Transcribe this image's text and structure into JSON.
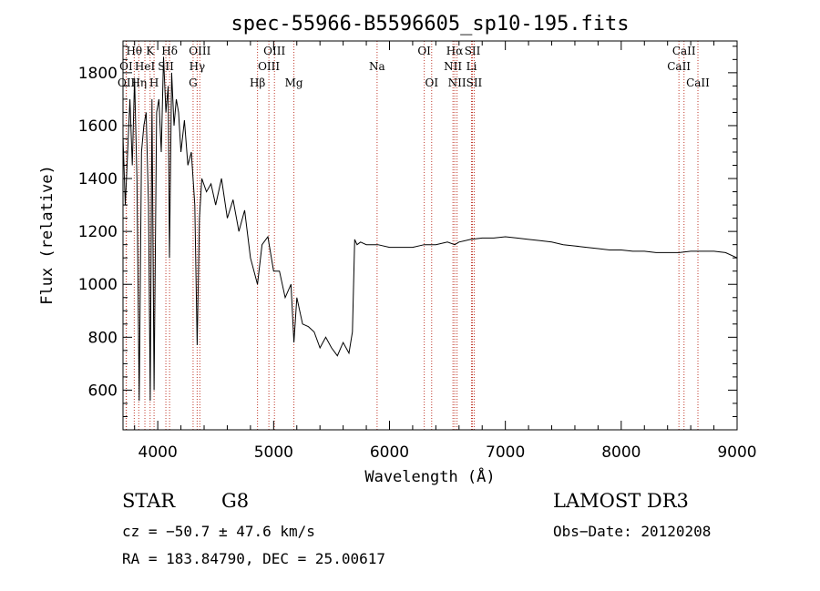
{
  "chart_data": {
    "type": "line",
    "title": "spec-55966-B5596605_sp10-195.fits",
    "xlabel": "Wavelength (Å)",
    "ylabel": "Flux (relative)",
    "xlim": [
      3700,
      9000
    ],
    "ylim": [
      450,
      1920
    ],
    "xticks": [
      4000,
      5000,
      6000,
      7000,
      8000,
      9000
    ],
    "yticks": [
      600,
      800,
      1000,
      1200,
      1400,
      1600,
      1800
    ],
    "series": [
      {
        "name": "flux",
        "x": [
          3700,
          3720,
          3740,
          3760,
          3780,
          3800,
          3820,
          3840,
          3860,
          3880,
          3900,
          3920,
          3935,
          3950,
          3968,
          3990,
          4010,
          4030,
          4050,
          4070,
          4090,
          4101,
          4120,
          4140,
          4160,
          4180,
          4200,
          4230,
          4260,
          4290,
          4320,
          4340,
          4360,
          4380,
          4420,
          4460,
          4500,
          4550,
          4600,
          4650,
          4700,
          4750,
          4800,
          4861,
          4900,
          4950,
          5000,
          5050,
          5100,
          5150,
          5175,
          5200,
          5250,
          5300,
          5350,
          5400,
          5450,
          5500,
          5550,
          5600,
          5650,
          5680,
          5700,
          5720,
          5750,
          5800,
          5900,
          6000,
          6100,
          6200,
          6300,
          6400,
          6500,
          6563,
          6600,
          6700,
          6800,
          6900,
          7000,
          7100,
          7200,
          7300,
          7400,
          7500,
          7600,
          7700,
          7800,
          7900,
          8000,
          8100,
          8200,
          8300,
          8400,
          8500,
          8600,
          8700,
          8800,
          8900,
          9000
        ],
        "y": [
          1560,
          1300,
          1500,
          1700,
          1450,
          1780,
          1400,
          560,
          1500,
          1600,
          1650,
          1300,
          560,
          1700,
          600,
          1650,
          1700,
          1500,
          1860,
          1650,
          1750,
          1100,
          1800,
          1600,
          1700,
          1650,
          1500,
          1620,
          1450,
          1500,
          1300,
          770,
          1250,
          1400,
          1350,
          1380,
          1300,
          1400,
          1250,
          1320,
          1200,
          1280,
          1100,
          1000,
          1150,
          1180,
          1050,
          1050,
          950,
          1000,
          780,
          950,
          850,
          840,
          820,
          760,
          800,
          760,
          730,
          780,
          740,
          820,
          1170,
          1150,
          1160,
          1150,
          1150,
          1140,
          1140,
          1140,
          1150,
          1150,
          1160,
          1150,
          1160,
          1170,
          1175,
          1175,
          1180,
          1175,
          1170,
          1165,
          1160,
          1150,
          1145,
          1140,
          1135,
          1130,
          1130,
          1125,
          1125,
          1120,
          1120,
          1120,
          1125,
          1125,
          1125,
          1120,
          1100
        ]
      }
    ],
    "line_labels": [
      {
        "label": "Hθ",
        "x": 3797,
        "row": 0
      },
      {
        "label": "K",
        "x": 3934,
        "row": 0
      },
      {
        "label": "Hδ",
        "x": 4102,
        "row": 0
      },
      {
        "label": "OIII",
        "x": 4363,
        "row": 0
      },
      {
        "label": "OIII",
        "x": 5007,
        "row": 0
      },
      {
        "label": "OI",
        "x": 6300,
        "row": 0
      },
      {
        "label": "Hα",
        "x": 6563,
        "row": 0
      },
      {
        "label": "SII",
        "x": 6716,
        "row": 0
      },
      {
        "label": "CaII",
        "x": 8542,
        "row": 0
      },
      {
        "label": "OI",
        "x": 3727,
        "row": 1
      },
      {
        "label": "HeI",
        "x": 3889,
        "row": 1
      },
      {
        "label": "SII",
        "x": 4070,
        "row": 1
      },
      {
        "label": "Hγ",
        "x": 4340,
        "row": 1
      },
      {
        "label": "OIII",
        "x": 4959,
        "row": 1
      },
      {
        "label": "Na",
        "x": 5893,
        "row": 1
      },
      {
        "label": "NII",
        "x": 6548,
        "row": 1
      },
      {
        "label": "Li",
        "x": 6708,
        "row": 1
      },
      {
        "label": "CaII",
        "x": 8498,
        "row": 1
      },
      {
        "label": "OII",
        "x": 3729,
        "row": 2
      },
      {
        "label": "Hη",
        "x": 3836,
        "row": 2
      },
      {
        "label": "H",
        "x": 3968,
        "row": 2
      },
      {
        "label": "G",
        "x": 4305,
        "row": 2
      },
      {
        "label": "Hβ",
        "x": 4861,
        "row": 2
      },
      {
        "label": "Mg",
        "x": 5175,
        "row": 2
      },
      {
        "label": "OI",
        "x": 6364,
        "row": 2
      },
      {
        "label": "NII",
        "x": 6583,
        "row": 2
      },
      {
        "label": "SII",
        "x": 6731,
        "row": 2
      },
      {
        "label": "CaII",
        "x": 8662,
        "row": 2
      }
    ],
    "line_color": "#c0392b"
  },
  "info": {
    "class": "STAR",
    "subclass": "G8",
    "survey": "LAMOST DR3",
    "cz": "cz = −50.7 ± 47.6 km/s",
    "obs_date": "Obs−Date: 20120208",
    "coords": "RA = 183.84790, DEC =  25.00617"
  }
}
